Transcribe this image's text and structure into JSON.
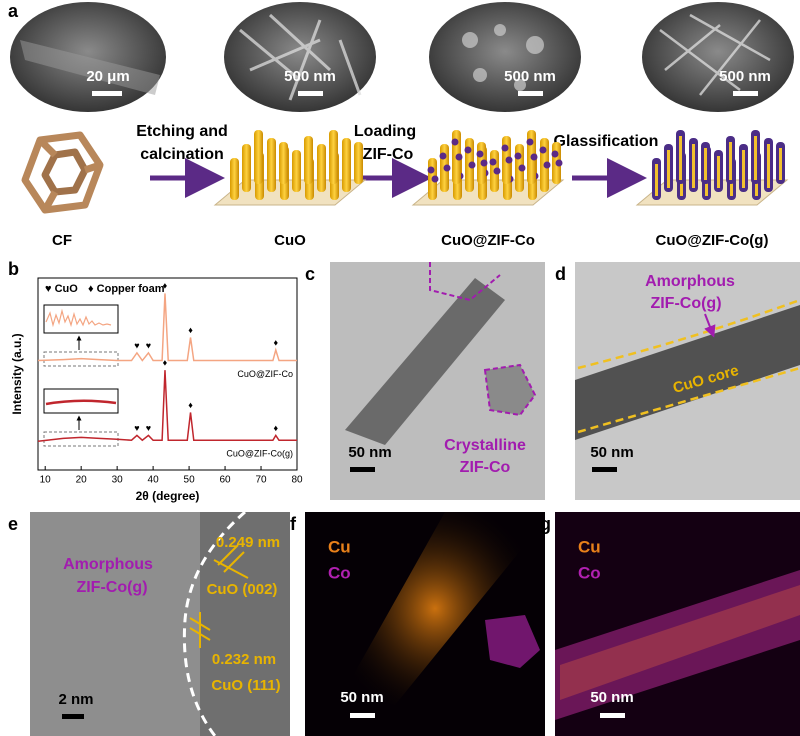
{
  "panel_a": {
    "label": "a",
    "scale_bars": [
      "20 μm",
      "500 nm",
      "500 nm",
      "500 nm"
    ],
    "steps": [
      [
        "Etching and",
        "calcination"
      ],
      [
        "Loading",
        "ZIF-Co"
      ],
      [
        "Glassification"
      ]
    ],
    "materials": [
      "CF",
      "CuO",
      "CuO@ZIF-Co",
      "CuO@ZIF-Co(g)"
    ]
  },
  "panel_b": {
    "label": "b"
  },
  "chart_data": {
    "type": "line",
    "xlabel": "2θ (degree)",
    "ylabel": "Intensity (a.u.)",
    "legend": [
      "♥ CuO",
      "♦ Copper foam"
    ],
    "x": [
      8,
      15,
      20,
      25,
      30,
      34,
      35.5,
      37,
      38.7,
      40,
      42.5,
      43.3,
      44.2,
      49.5,
      50.4,
      51.3,
      55,
      60,
      65,
      70,
      73.3,
      74.1,
      75,
      80
    ],
    "series": [
      {
        "name": "CuO@ZIF-Co",
        "color": "#f4a582",
        "values": [
          57,
          57.5,
          58,
          57.5,
          57,
          57,
          61,
          57,
          61,
          57,
          57,
          92,
          57,
          57,
          69,
          57,
          57,
          57,
          57,
          57,
          57,
          62.5,
          57,
          57
        ]
      },
      {
        "name": "CuO@ZIF-Co(g)",
        "color": "#c0262d",
        "values": [
          15,
          16.5,
          17,
          16.5,
          16,
          15.5,
          18,
          15.5,
          18,
          15.5,
          15.5,
          52,
          15.5,
          15.5,
          30,
          15.5,
          15.5,
          15.5,
          15.5,
          15.5,
          15.5,
          18,
          15.5,
          15.5
        ]
      }
    ],
    "annotations": [
      {
        "text": "♥",
        "x": 35.5,
        "series": 0
      },
      {
        "text": "♥",
        "x": 38.7,
        "series": 0
      },
      {
        "text": "♦",
        "x": 43.3,
        "series": 0
      },
      {
        "text": "♦",
        "x": 50.4,
        "series": 0
      },
      {
        "text": "♦",
        "x": 74.1,
        "series": 0
      },
      {
        "text": "♥",
        "x": 35.5,
        "series": 1
      },
      {
        "text": "♥",
        "x": 38.7,
        "series": 1
      },
      {
        "text": "♦",
        "x": 43.3,
        "series": 1
      },
      {
        "text": "♦",
        "x": 50.4,
        "series": 1
      },
      {
        "text": "♦",
        "x": 74.1,
        "series": 1
      }
    ],
    "xlim": [
      8,
      80
    ],
    "ylim": [
      0,
      100
    ],
    "xticks": [
      10,
      20,
      30,
      40,
      50,
      60,
      70,
      80
    ]
  },
  "panel_c": {
    "label": "c",
    "annotation": [
      "Crystalline",
      "ZIF-Co"
    ],
    "scale_bar": "50 nm"
  },
  "panel_d": {
    "label": "d",
    "annotation": [
      "Amorphous",
      "ZIF-Co(g)"
    ],
    "core": "CuO core",
    "scale_bar": "50 nm"
  },
  "panel_e": {
    "label": "e",
    "annotation": [
      "Amorphous",
      "ZIF-Co(g)"
    ],
    "fringes": [
      {
        "spacing": "0.249 nm",
        "plane": "CuO (002)"
      },
      {
        "spacing": "0.232 nm",
        "plane": "CuO (111)"
      }
    ],
    "scale_bar": "2 nm"
  },
  "panel_f": {
    "label": "f",
    "elements": [
      "Cu",
      "Co"
    ],
    "scale_bar": "50 nm"
  },
  "panel_g": {
    "label": "g",
    "elements": [
      "Cu",
      "Co"
    ],
    "scale_bar": "50 nm"
  }
}
